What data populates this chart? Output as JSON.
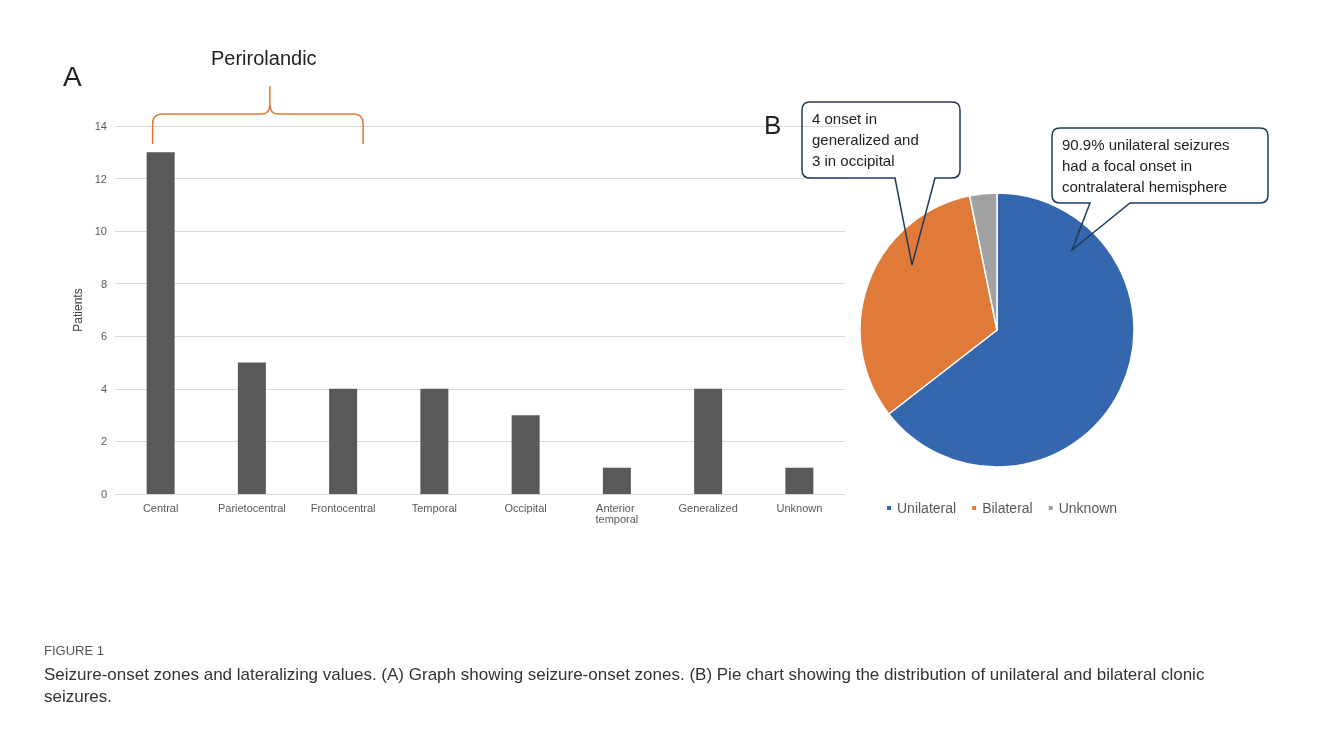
{
  "chart_data": [
    {
      "type": "bar",
      "ylabel": "Patients",
      "categories": [
        "Central",
        "Parietocentral",
        "Frontocentral",
        "Temporal",
        "Occipital",
        "Anterior temporal",
        "Generalized",
        "Unknown"
      ],
      "values": [
        13,
        5,
        4,
        4,
        3,
        1,
        4,
        1
      ],
      "color": "#595959",
      "ylim": [
        0,
        14
      ],
      "yticks": [
        0,
        2,
        4,
        6,
        8,
        10,
        12,
        14
      ],
      "grid": "y",
      "legend": false,
      "annotations": [
        "A",
        "Perirolandic",
        "FIGURE 1",
        "Seizure-onset zones and lateralizing values. (A) Graph showing seizure-onset zones. (B) Pie chart showing the distribution of unilateral and bilateral clonic seizures."
      ]
    },
    {
      "type": "pie",
      "categories": [
        "Unilateral",
        "Bilateral",
        "Unknown"
      ],
      "values": [
        64.5,
        32.3,
        3.2
      ],
      "colors": [
        "#3567ae",
        "#e07a38",
        "#a0a1a3"
      ],
      "legend": "bottom",
      "annotations": [
        "B",
        "4 onset in generalized and 3 in occipital",
        "90.9% unilateral seizures had a focal onset in contralateral hemisphere"
      ]
    }
  ]
}
